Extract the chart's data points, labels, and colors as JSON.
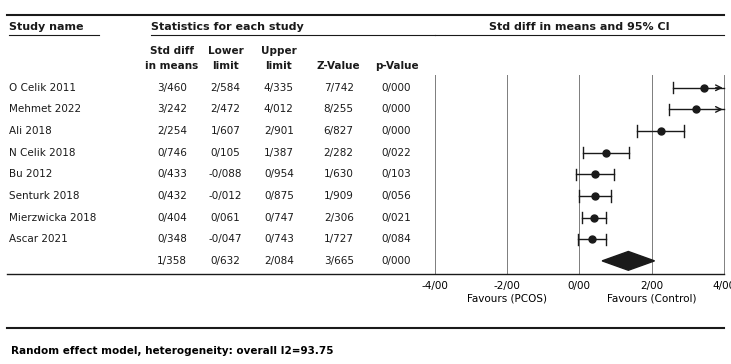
{
  "studies": [
    {
      "name": "O Celik 2011",
      "std_diff": 3.46,
      "lower": 2.584,
      "upper": 4.335,
      "z_value": "7/742",
      "p_value": "0/000"
    },
    {
      "name": "Mehmet 2022",
      "std_diff": 3.242,
      "lower": 2.472,
      "upper": 4.012,
      "z_value": "8/255",
      "p_value": "0/000"
    },
    {
      "name": "Ali 2018",
      "std_diff": 2.254,
      "lower": 1.607,
      "upper": 2.901,
      "z_value": "6/827",
      "p_value": "0/000"
    },
    {
      "name": "N Celik 2018",
      "std_diff": 0.746,
      "lower": 0.105,
      "upper": 1.387,
      "z_value": "2/282",
      "p_value": "0/022"
    },
    {
      "name": "Bu 2012",
      "std_diff": 0.433,
      "lower": -0.088,
      "upper": 0.954,
      "z_value": "1/630",
      "p_value": "0/103"
    },
    {
      "name": "Senturk 2018",
      "std_diff": 0.432,
      "lower": -0.012,
      "upper": 0.875,
      "z_value": "1/909",
      "p_value": "0/056"
    },
    {
      "name": "Mierzwicka 2018",
      "std_diff": 0.404,
      "lower": 0.061,
      "upper": 0.747,
      "z_value": "2/306",
      "p_value": "0/021"
    },
    {
      "name": "Ascar 2021",
      "std_diff": 0.348,
      "lower": -0.047,
      "upper": 0.743,
      "z_value": "1/727",
      "p_value": "0/084"
    }
  ],
  "overall": {
    "std_diff": 1.358,
    "lower": 0.632,
    "upper": 2.084,
    "z_value": "3/665",
    "p_value": "0/000"
  },
  "xlim": [
    -4.0,
    4.0
  ],
  "xticks": [
    -4.0,
    -2.0,
    0.0,
    2.0,
    4.0
  ],
  "xtick_labels": [
    "-4/00",
    "-2/00",
    "0/00",
    "2/00",
    "4/00"
  ],
  "header_left": "Study name",
  "header_stats": "Statistics for each study",
  "header_forest": "Std diff in means and 95% CI",
  "footer": "Random effect model, heterogeneity: overall I2=93.75",
  "favours_left": "Favours (PCOS)",
  "favours_right": "Favours (Control)",
  "text_color": "#1a1a1a",
  "grid_line_color": "#808080",
  "dot_color": "#1a1a1a",
  "diamond_color": "#1a1a1a",
  "line_color": "#1a1a1a",
  "border_color": "#1a1a1a",
  "underline_color": "#1a1a1a"
}
